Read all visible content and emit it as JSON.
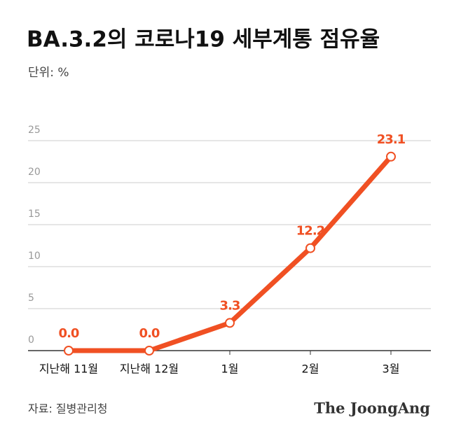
{
  "chart_data": {
    "type": "line",
    "title": "BA.3.2의 코로나19 세부계통 점유율",
    "subtitle": "단위: %",
    "source": "자료: 질병관리청",
    "brand": "The JoongAng",
    "categories": [
      "지난해 11월",
      "지난해 12월",
      "1월",
      "2월",
      "3월"
    ],
    "values": [
      0.0,
      0.0,
      3.3,
      12.2,
      23.1
    ],
    "value_labels": [
      "0.0",
      "0.0",
      "3.3",
      "12.2",
      "23.1"
    ],
    "color": "#f05023",
    "ylim": [
      0,
      25
    ],
    "yticks": [
      0,
      5,
      10,
      15,
      20,
      25
    ],
    "grid": true
  }
}
